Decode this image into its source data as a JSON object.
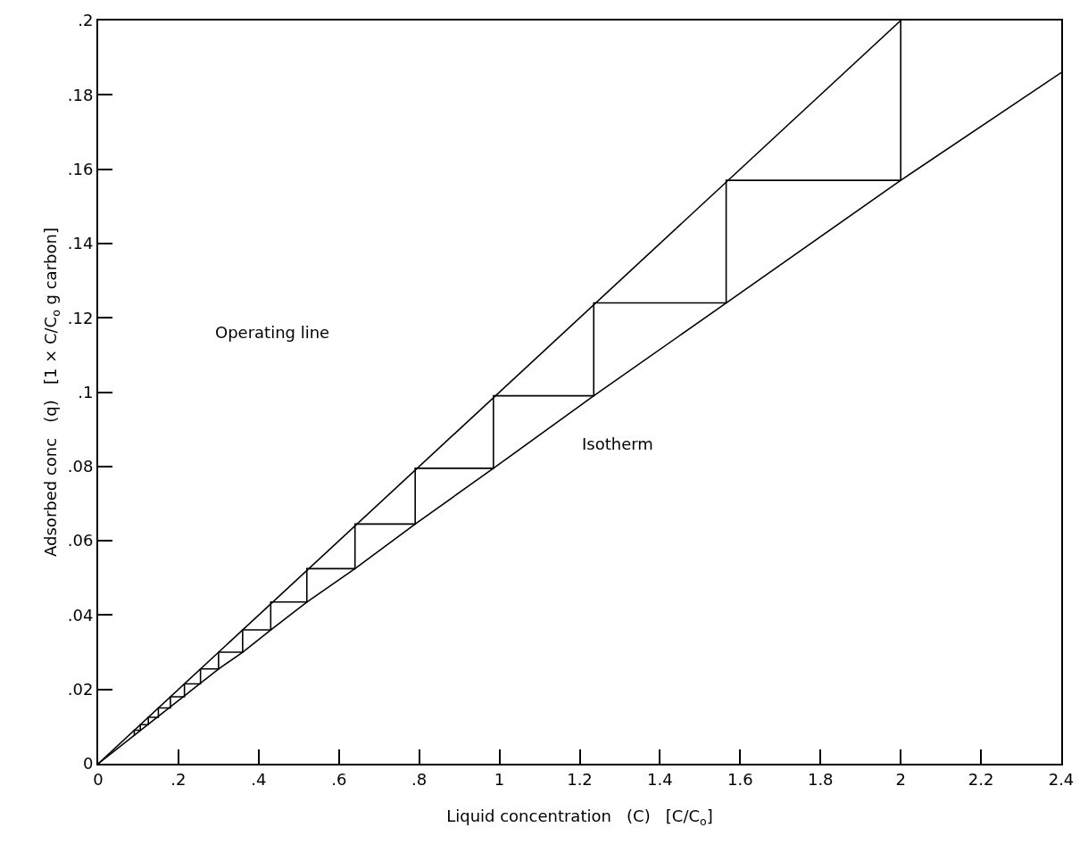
{
  "chart_data": {
    "type": "line",
    "xlabel": "Liquid concentration   (C)   [C/C$_{o}$]",
    "ylabel": "Adsorbed conc   (q)   [1 × C/C$_{o}$ g carbon]",
    "series": [
      {
        "color": "#000000",
        "x": [
          0,
          2
        ],
        "values": [
          0,
          0.2
        ]
      },
      {
        "color": "#000000",
        "x": [
          0,
          0.3,
          0.36,
          0.43,
          0.52,
          0.64,
          0.79,
          0.985,
          1.235,
          1.565,
          2,
          2.4
        ],
        "values": [
          0,
          0.0255,
          0.03,
          0.036,
          0.0435,
          0.0525,
          0.0645,
          0.0795,
          0.099,
          0.124,
          0.157,
          0.186
        ]
      },
      {
        "color": "#000000",
        "x": [
          2,
          2,
          1.565,
          1.565,
          1.235,
          1.235,
          0.985,
          0.985,
          0.79,
          0.79,
          0.64,
          0.64,
          0.52,
          0.52,
          0.43,
          0.43,
          0.36,
          0.36,
          0.3,
          0.3,
          0.255,
          0.255,
          0.215,
          0.215,
          0.18,
          0.18,
          0.15,
          0.15,
          0.125,
          0.125,
          0.105,
          0.105,
          0.09,
          0.09
        ],
        "values": [
          0.2,
          0.157,
          0.157,
          0.124,
          0.124,
          0.099,
          0.099,
          0.0795,
          0.0795,
          0.0645,
          0.0645,
          0.0525,
          0.0525,
          0.0435,
          0.0435,
          0.036,
          0.036,
          0.03,
          0.03,
          0.0255,
          0.0255,
          0.0215,
          0.0215,
          0.018,
          0.018,
          0.015,
          0.015,
          0.0125,
          0.0125,
          0.0105,
          0.0105,
          0.009,
          0.009,
          0.0075
        ]
      }
    ],
    "annotations": [
      "Operating line",
      "Isotherm"
    ],
    "xlim": [
      0,
      2.4
    ],
    "ylim": [
      0,
      0.2
    ],
    "xticks": [
      0,
      {
        "value": 0.2,
        "label": ".2"
      },
      {
        "value": 0.4,
        "label": ".4"
      },
      {
        "value": 0.6,
        "label": ".6"
      },
      {
        "value": 0.8,
        "label": ".8"
      },
      1,
      1.2,
      1.4,
      1.6,
      1.8,
      2,
      2.2,
      2.4
    ],
    "yticks": [
      0,
      {
        "value": 0.02,
        "label": ".02"
      },
      {
        "value": 0.04,
        "label": ".04"
      },
      {
        "value": 0.06,
        "label": ".06"
      },
      {
        "value": 0.08,
        "label": ".08"
      },
      {
        "value": 0.1,
        "label": ".1"
      },
      {
        "value": 0.12,
        "label": ".12"
      },
      {
        "value": 0.14,
        "label": ".14"
      },
      {
        "value": 0.16,
        "label": ".16"
      },
      {
        "value": 0.18,
        "label": ".18"
      },
      {
        "value": 0.2,
        "label": ".2"
      }
    ],
    "grid": false,
    "marker": "none",
    "line_style": "solid"
  }
}
